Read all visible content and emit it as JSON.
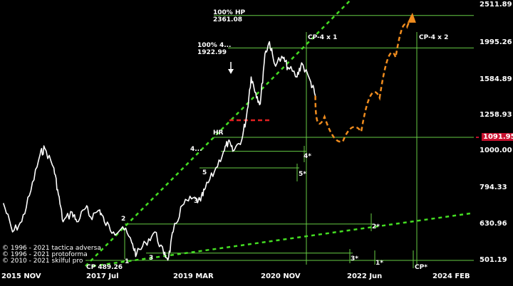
{
  "chart_data": {
    "type": "line",
    "title": "",
    "xlabel": "",
    "ylabel": "",
    "yscale": "log",
    "ylim": [
      470,
      2560
    ],
    "y_ticks": [
      "2511.89",
      "1995.26",
      "1584.89",
      "1258.93",
      "1000.00",
      "794.33",
      "630.96",
      "501.19"
    ],
    "current_price": "1091.95",
    "x_ticks": [
      "2015 NOV",
      "2017 Jul",
      "2019 MAR",
      "2020 NOV",
      "2022 Jun",
      "2024 FEB"
    ],
    "price_series": {
      "name": "",
      "points": [
        [
          "2015-09",
          720
        ],
        [
          "2015-11",
          600
        ],
        [
          "2016-01",
          640
        ],
        [
          "2016-03",
          780
        ],
        [
          "2016-05",
          980
        ],
        [
          "2016-06",
          1020
        ],
        [
          "2016-08",
          900
        ],
        [
          "2016-09",
          760
        ],
        [
          "2016-10",
          640
        ],
        [
          "2016-12",
          680
        ],
        [
          "2017-01",
          640
        ],
        [
          "2017-03",
          700
        ],
        [
          "2017-04",
          660
        ],
        [
          "2017-06",
          690
        ],
        [
          "2017-07",
          640
        ],
        [
          "2017-09",
          600
        ],
        [
          "2017-11",
          620
        ],
        [
          "2018-01",
          560
        ],
        [
          "2018-02",
          520
        ],
        [
          "2018-04",
          560
        ],
        [
          "2018-06",
          600
        ],
        [
          "2018-08",
          520
        ],
        [
          "2018-09",
          510
        ],
        [
          "2018-10",
          600
        ],
        [
          "2018-12",
          710
        ],
        [
          "2019-02",
          740
        ],
        [
          "2019-04",
          730
        ],
        [
          "2019-05",
          790
        ],
        [
          "2019-07",
          880
        ],
        [
          "2019-09",
          1000
        ],
        [
          "2019-10",
          1060
        ],
        [
          "2019-11",
          1000
        ],
        [
          "2020-01",
          1080
        ],
        [
          "2020-02",
          1250
        ],
        [
          "2020-03",
          1600
        ],
        [
          "2020-04",
          1450
        ],
        [
          "2020-05",
          1350
        ],
        [
          "2020-06",
          1850
        ],
        [
          "2020-07",
          2000
        ],
        [
          "2020-08",
          1750
        ],
        [
          "2020-10",
          1800
        ],
        [
          "2020-11",
          1700
        ],
        [
          "2021-01",
          1600
        ],
        [
          "2021-02",
          1750
        ],
        [
          "2021-04",
          1550
        ],
        [
          "2021-05",
          1420
        ]
      ]
    },
    "projection": {
      "points": [
        [
          "2021-05",
          1420
        ],
        [
          "2021-09",
          1090
        ],
        [
          "2022-01",
          1040
        ],
        [
          "2022-05",
          1230
        ],
        [
          "2022-09",
          1600
        ],
        [
          "2022-12",
          2050
        ],
        [
          "2023-02",
          2360
        ]
      ]
    },
    "labels": {
      "hp100": "100% HP",
      "hp100_value": "2361.08",
      "hp100_4": "100%  4...",
      "hp100_4_value": "1922.99",
      "hr": "HR",
      "n4": "4...",
      "n5": "5",
      "n3p": "3'",
      "n2": "2",
      "n1": "1",
      "n3": "3",
      "s4": "4*",
      "s5": "5*",
      "s2": "2*",
      "s3": "3*",
      "s1": "1*",
      "cp_star": "CP*",
      "cp_base": "CP 489.26",
      "cp4x1": "CP-4 x 1",
      "cp4x2": "CP-4 x 2"
    },
    "copyright": [
      "© 1996 - 2021 tactica adversa",
      "© 1996 - 2021 protoforma",
      "© 2010 - 2021 skilful pro"
    ]
  }
}
